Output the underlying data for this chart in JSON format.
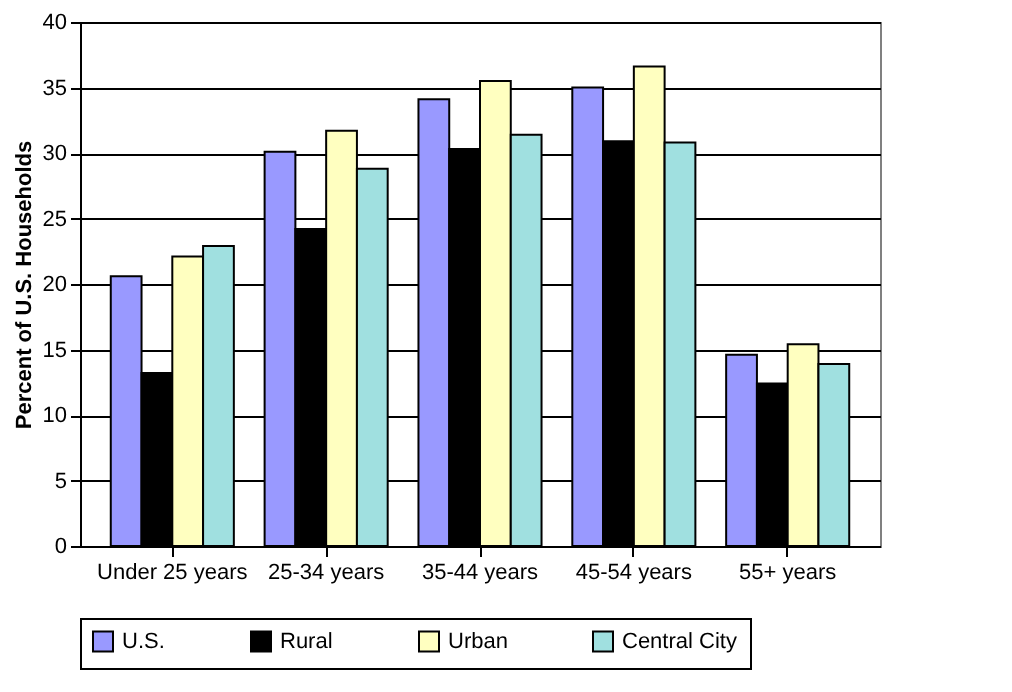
{
  "chart_data": {
    "type": "bar",
    "ylabel": "Percent of U.S. Households",
    "categories": [
      "Under 25 years",
      "25-34 years",
      "35-44 years",
      "45-54 years",
      "55+ years"
    ],
    "series": [
      {
        "name": "U.S.",
        "color": "#9999ff",
        "values": [
          20.6,
          30.1,
          34.1,
          35.0,
          14.6
        ]
      },
      {
        "name": "Rural",
        "color": "#000000",
        "values": [
          13.2,
          24.2,
          30.3,
          30.9,
          12.4
        ]
      },
      {
        "name": "Urban",
        "color": "#ffffc0",
        "values": [
          22.1,
          31.7,
          35.5,
          36.6,
          15.4
        ]
      },
      {
        "name": "Central City",
        "color": "#a0e0e0",
        "values": [
          22.9,
          28.8,
          31.4,
          30.8,
          13.9
        ]
      }
    ],
    "ylim": [
      0,
      40
    ],
    "yticks": [
      0,
      5,
      10,
      15,
      20,
      25,
      30,
      35,
      40
    ],
    "grid": "y",
    "legend": "bottom"
  }
}
